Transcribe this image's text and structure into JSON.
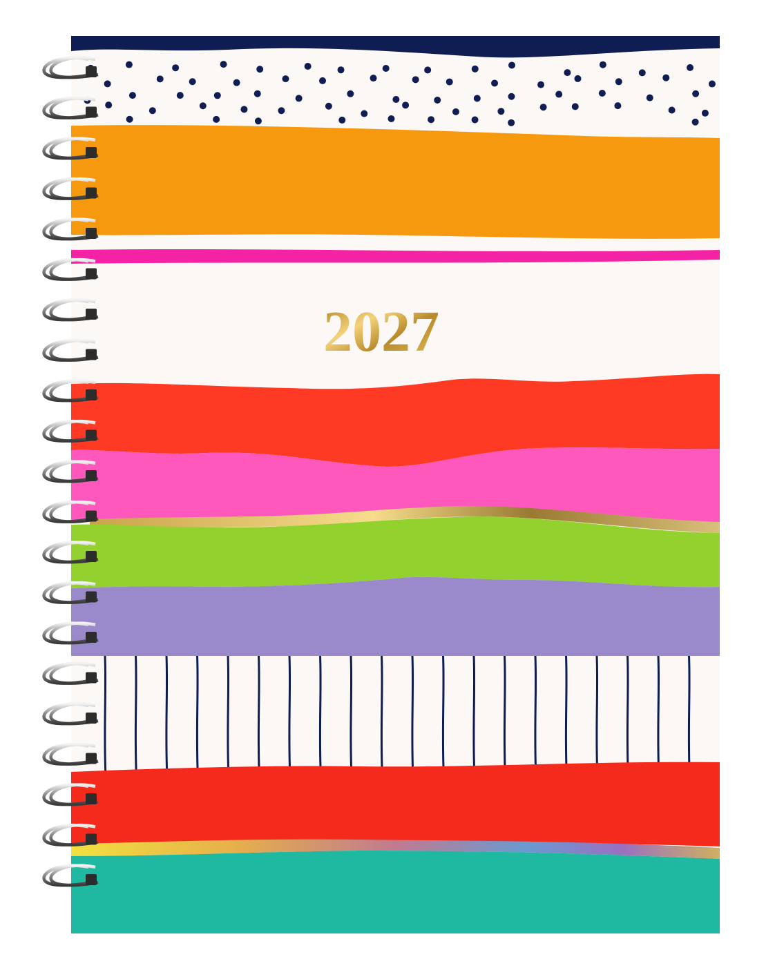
{
  "cover": {
    "year": "2027"
  }
}
